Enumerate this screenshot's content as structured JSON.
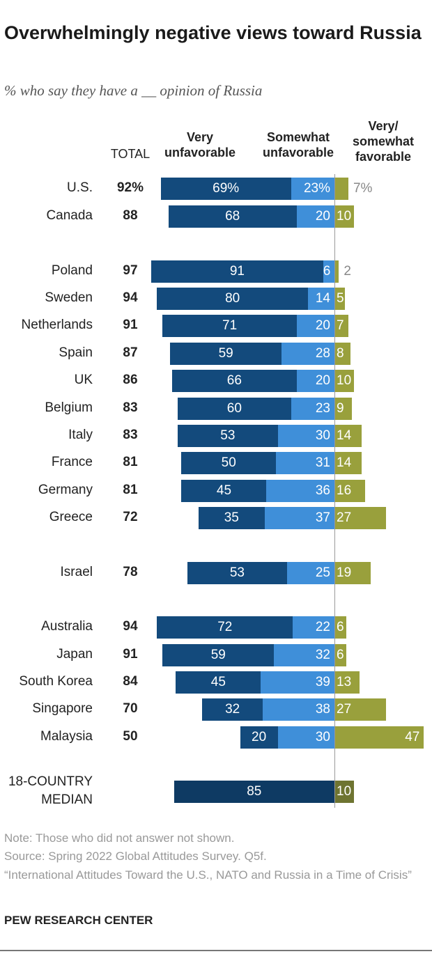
{
  "chart_data": {
    "type": "bar",
    "title": "Overwhelmingly negative views toward Russia",
    "subtitle": "% who say they have a __ opinion of Russia",
    "columns": {
      "total": "TOTAL",
      "very_unfav": [
        "Very",
        "unfavorable"
      ],
      "somewhat_unfav": [
        "Somewhat",
        "unfavorable"
      ],
      "fav": [
        "Very/",
        "somewhat",
        "favorable"
      ]
    },
    "colors": {
      "very_unfavorable": "#134a7c",
      "somewhat_unfavorable": "#3f8fd9",
      "favorable": "#99a03c",
      "median_unfavorable": "#0e3a63",
      "median_favorable": "#6e7431"
    },
    "rows": [
      {
        "country": "U.S.",
        "total": "92%",
        "very": 69,
        "somewhat": 23,
        "fav": 7,
        "percent": true
      },
      {
        "country": "Canada",
        "total": "88",
        "very": 68,
        "somewhat": 20,
        "fav": 10
      },
      {
        "country": "Poland",
        "total": "97",
        "very": 91,
        "somewhat": 6,
        "fav": 2
      },
      {
        "country": "Sweden",
        "total": "94",
        "very": 80,
        "somewhat": 14,
        "fav": 5
      },
      {
        "country": "Netherlands",
        "total": "91",
        "very": 71,
        "somewhat": 20,
        "fav": 7
      },
      {
        "country": "Spain",
        "total": "87",
        "very": 59,
        "somewhat": 28,
        "fav": 8
      },
      {
        "country": "UK",
        "total": "86",
        "very": 66,
        "somewhat": 20,
        "fav": 10
      },
      {
        "country": "Belgium",
        "total": "83",
        "very": 60,
        "somewhat": 23,
        "fav": 9
      },
      {
        "country": "Italy",
        "total": "83",
        "very": 53,
        "somewhat": 30,
        "fav": 14
      },
      {
        "country": "France",
        "total": "81",
        "very": 50,
        "somewhat": 31,
        "fav": 14
      },
      {
        "country": "Germany",
        "total": "81",
        "very": 45,
        "somewhat": 36,
        "fav": 16
      },
      {
        "country": "Greece",
        "total": "72",
        "very": 35,
        "somewhat": 37,
        "fav": 27
      },
      {
        "country": "Israel",
        "total": "78",
        "very": 53,
        "somewhat": 25,
        "fav": 19
      },
      {
        "country": "Australia",
        "total": "94",
        "very": 72,
        "somewhat": 22,
        "fav": 6
      },
      {
        "country": "Japan",
        "total": "91",
        "very": 59,
        "somewhat": 32,
        "fav": 6
      },
      {
        "country": "South Korea",
        "total": "84",
        "very": 45,
        "somewhat": 39,
        "fav": 13
      },
      {
        "country": "Singapore",
        "total": "70",
        "very": 32,
        "somewhat": 38,
        "fav": 27
      },
      {
        "country": "Malaysia",
        "total": "50",
        "very": 20,
        "somewhat": 30,
        "fav": 47
      }
    ],
    "median": {
      "label": [
        "18-COUNTRY",
        "MEDIAN"
      ],
      "unfavorable": 85,
      "fav": 10
    }
  },
  "footer": {
    "note": "Note: Those who did not answer not shown.",
    "source": "Source: Spring 2022 Global Attitudes Survey. Q5f.",
    "report": "“International Attitudes Toward the U.S., NATO and Russia in a Time of Crisis”",
    "brand": "PEW RESEARCH CENTER"
  }
}
